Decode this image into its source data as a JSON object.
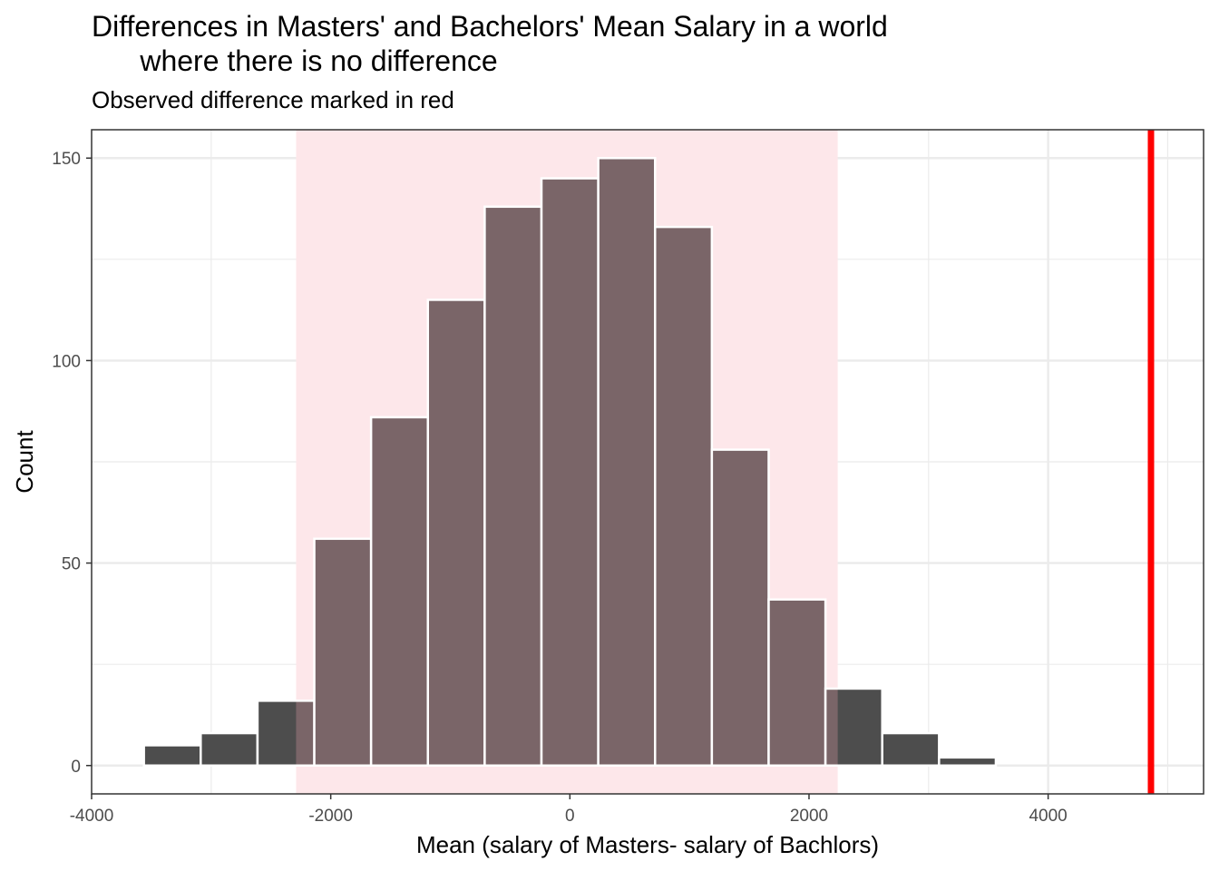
{
  "chart_data": {
    "type": "bar",
    "title": "Differences in Masters' and Bachelors' Mean Salary in a world\n      where there is no difference",
    "subtitle": "Observed difference marked in red",
    "xlabel": "Mean (salary of Masters- salary of Bachlors)",
    "ylabel": "Count",
    "xlim": [
      -4000,
      5300
    ],
    "ylim": [
      -7,
      157
    ],
    "x_ticks": [
      -4000,
      -2000,
      0,
      2000,
      4000
    ],
    "y_ticks": [
      0,
      50,
      100,
      150
    ],
    "x_tick_labels": [
      "-4000",
      "-2000",
      "0",
      "2000",
      "4000"
    ],
    "y_tick_labels": [
      "0",
      "50",
      "100",
      "150"
    ],
    "bin_width": 475,
    "bins": [
      {
        "x": -3325,
        "count": 5
      },
      {
        "x": -2850,
        "count": 8
      },
      {
        "x": -2375,
        "count": 16
      },
      {
        "x": -1900,
        "count": 56
      },
      {
        "x": -1425,
        "count": 86
      },
      {
        "x": -950,
        "count": 115
      },
      {
        "x": -475,
        "count": 138
      },
      {
        "x": 0,
        "count": 145
      },
      {
        "x": 475,
        "count": 150
      },
      {
        "x": 950,
        "count": 133
      },
      {
        "x": 1425,
        "count": 78
      },
      {
        "x": 1900,
        "count": 41
      },
      {
        "x": 2375,
        "count": 19
      },
      {
        "x": 2850,
        "count": 8
      },
      {
        "x": 3325,
        "count": 2
      }
    ],
    "shaded_interval": [
      -2290,
      2240
    ],
    "observed_difference": 4860,
    "grid": true,
    "colors": {
      "bar": "#4d4d4d",
      "bar_in_interval": "#7a6568",
      "bar_outline": "#ffffff",
      "shade": "#fde7ea",
      "observed_line": "#ff0000",
      "grid": "#ebebeb",
      "panel_border": "#333333"
    }
  }
}
